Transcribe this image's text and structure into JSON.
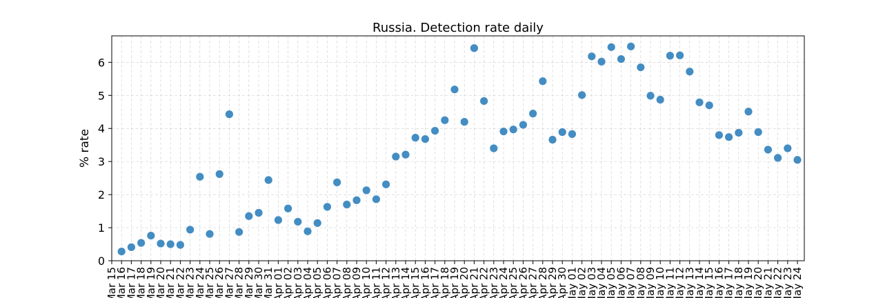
{
  "chart_data": {
    "type": "scatter",
    "title": "Russia. Detection rate daily",
    "xlabel": "",
    "ylabel": "% rate",
    "ylim": [
      0,
      6.8
    ],
    "yticks": [
      0,
      1,
      2,
      3,
      4,
      5,
      6
    ],
    "grid": true,
    "marker_color": "#3a87c0",
    "categories": [
      "Mar 15",
      "Mar 16",
      "Mar 17",
      "Mar 18",
      "Mar 19",
      "Mar 20",
      "Mar 21",
      "Mar 22",
      "Mar 23",
      "Mar 24",
      "Mar 25",
      "Mar 26",
      "Mar 27",
      "Mar 28",
      "Mar 29",
      "Mar 30",
      "Mar 31",
      "Apr 01",
      "Apr 02",
      "Apr 03",
      "Apr 04",
      "Apr 05",
      "Apr 06",
      "Apr 07",
      "Apr 08",
      "Apr 09",
      "Apr 10",
      "Apr 11",
      "Apr 12",
      "Apr 13",
      "Apr 14",
      "Apr 15",
      "Apr 16",
      "Apr 17",
      "Apr 18",
      "Apr 19",
      "Apr 20",
      "Apr 21",
      "Apr 22",
      "Apr 23",
      "Apr 24",
      "Apr 25",
      "Apr 26",
      "Apr 27",
      "Apr 28",
      "Apr 29",
      "Apr 30",
      "May 01",
      "May 02",
      "May 03",
      "May 04",
      "May 05",
      "May 06",
      "May 07",
      "May 08",
      "May 09",
      "May 10",
      "May 11",
      "May 12",
      "May 13",
      "May 14",
      "May 15",
      "May 16",
      "May 17",
      "May 18",
      "May 19",
      "May 20",
      "May 21",
      "May 22",
      "May 23",
      "May 24"
    ],
    "values": [
      null,
      0.28,
      0.41,
      0.54,
      0.76,
      0.52,
      0.5,
      0.48,
      0.94,
      2.54,
      0.81,
      2.62,
      4.43,
      0.87,
      1.35,
      1.45,
      2.44,
      1.23,
      1.58,
      1.18,
      0.89,
      1.14,
      1.63,
      2.37,
      1.7,
      1.83,
      2.13,
      1.86,
      2.31,
      3.15,
      3.21,
      3.72,
      3.68,
      3.93,
      4.25,
      5.18,
      4.2,
      6.43,
      4.83,
      3.4,
      3.91,
      3.97,
      4.11,
      4.45,
      5.43,
      3.66,
      3.89,
      3.83,
      5.01,
      6.18,
      6.02,
      6.46,
      6.1,
      6.48,
      5.85,
      4.99,
      4.87,
      6.2,
      6.21,
      5.72,
      4.79,
      4.7,
      3.8,
      3.74,
      3.87,
      4.51,
      3.89,
      3.36,
      3.11,
      3.4,
      3.05
    ]
  }
}
